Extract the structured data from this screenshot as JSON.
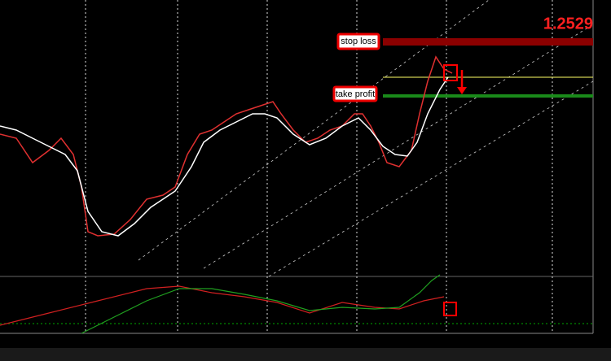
{
  "price_label": "1.2529",
  "annotations": {
    "stop_loss": "stop loss",
    "take_profit": "take profit"
  }
}
